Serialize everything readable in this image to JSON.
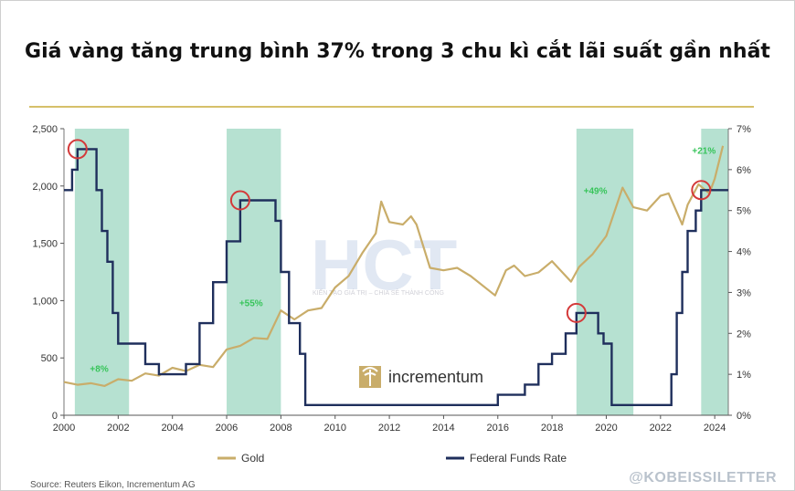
{
  "title": "Giá vàng tăng trung bình 37% trong 3 chu kì cắt lãi suất gần nhất",
  "source": "Source: Reuters Eikon, Incrementum AG",
  "handle": "@KOBEISSILETTER",
  "logo_text": "incrementum",
  "watermark": {
    "text": "HCT",
    "subtext": "KIẾN TẠO GIÁ TRỊ – CHIA SẺ THÀNH CÔNG"
  },
  "colors": {
    "gold": "#c9ad6a",
    "fed": "#1f2f5c",
    "band": "#9dd7c2",
    "pct": "#37c45a",
    "circle": "#d43a3a"
  },
  "chart_data": {
    "type": "line",
    "x_ticks": [
      "2000",
      "2002",
      "2004",
      "2006",
      "2008",
      "2010",
      "2012",
      "2014",
      "2016",
      "2018",
      "2020",
      "2022",
      "2024"
    ],
    "y_left_ticks": [
      "0",
      "500",
      "1,000",
      "1,500",
      "2,000",
      "2,500"
    ],
    "y_right_ticks": [
      "0%",
      "1%",
      "2%",
      "3%",
      "4%",
      "5%",
      "6%",
      "7%"
    ],
    "xlim": [
      2000,
      2024.5
    ],
    "ylim_left": [
      0,
      2500
    ],
    "ylim_right": [
      0,
      7
    ],
    "legend_position": "bottom",
    "series": [
      {
        "name": "Gold",
        "axis": "left",
        "points": [
          [
            2000,
            290
          ],
          [
            2000.5,
            280
          ],
          [
            2001,
            265
          ],
          [
            2001.5,
            270
          ],
          [
            2002,
            300
          ],
          [
            2002.5,
            315
          ],
          [
            2003,
            350
          ],
          [
            2003.5,
            360
          ],
          [
            2004,
            400
          ],
          [
            2004.5,
            400
          ],
          [
            2005,
            425
          ],
          [
            2005.5,
            435
          ],
          [
            2006,
            560
          ],
          [
            2006.5,
            620
          ],
          [
            2007,
            660
          ],
          [
            2007.5,
            680
          ],
          [
            2008,
            900
          ],
          [
            2008.5,
            850
          ],
          [
            2009,
            900
          ],
          [
            2009.5,
            950
          ],
          [
            2010,
            1100
          ],
          [
            2010.5,
            1230
          ],
          [
            2011,
            1400
          ],
          [
            2011.5,
            1600
          ],
          [
            2011.7,
            1850
          ],
          [
            2012,
            1700
          ],
          [
            2012.5,
            1650
          ],
          [
            2012.8,
            1750
          ],
          [
            2013,
            1650
          ],
          [
            2013.5,
            1300
          ],
          [
            2014,
            1250
          ],
          [
            2014.5,
            1300
          ],
          [
            2015,
            1200
          ],
          [
            2015.9,
            1060
          ],
          [
            2016.3,
            1250
          ],
          [
            2016.6,
            1320
          ],
          [
            2017,
            1200
          ],
          [
            2017.5,
            1260
          ],
          [
            2018,
            1330
          ],
          [
            2018.7,
            1180
          ],
          [
            2019,
            1280
          ],
          [
            2019.5,
            1420
          ],
          [
            2020,
            1550
          ],
          [
            2020.6,
            2000
          ],
          [
            2021,
            1800
          ],
          [
            2021.5,
            1800
          ],
          [
            2022,
            1900
          ],
          [
            2022.3,
            1950
          ],
          [
            2022.8,
            1650
          ],
          [
            2023,
            1850
          ],
          [
            2023.4,
            2000
          ],
          [
            2023.8,
            1950
          ],
          [
            2024,
            2050
          ],
          [
            2024.3,
            2350
          ]
        ]
      },
      {
        "name": "Federal Funds Rate",
        "axis": "right",
        "points": [
          [
            2000,
            5.5
          ],
          [
            2000.3,
            6.0
          ],
          [
            2000.5,
            6.5
          ],
          [
            2001,
            6.5
          ],
          [
            2001.2,
            5.5
          ],
          [
            2001.4,
            4.5
          ],
          [
            2001.6,
            3.75
          ],
          [
            2001.8,
            2.5
          ],
          [
            2002,
            1.75
          ],
          [
            2002.9,
            1.75
          ],
          [
            2003,
            1.25
          ],
          [
            2003.5,
            1.0
          ],
          [
            2004.4,
            1.0
          ],
          [
            2004.5,
            1.25
          ],
          [
            2005,
            2.25
          ],
          [
            2005.5,
            3.25
          ],
          [
            2006,
            4.25
          ],
          [
            2006.5,
            5.25
          ],
          [
            2007.6,
            5.25
          ],
          [
            2007.8,
            4.75
          ],
          [
            2008,
            3.5
          ],
          [
            2008.3,
            2.25
          ],
          [
            2008.7,
            1.5
          ],
          [
            2008.9,
            0.25
          ],
          [
            2015.9,
            0.25
          ],
          [
            2016,
            0.5
          ],
          [
            2016.9,
            0.5
          ],
          [
            2017,
            0.75
          ],
          [
            2017.5,
            1.25
          ],
          [
            2018,
            1.5
          ],
          [
            2018.5,
            2.0
          ],
          [
            2018.9,
            2.5
          ],
          [
            2019.5,
            2.5
          ],
          [
            2019.7,
            2.0
          ],
          [
            2019.9,
            1.75
          ],
          [
            2020.2,
            0.25
          ],
          [
            2022.2,
            0.25
          ],
          [
            2022.4,
            1.0
          ],
          [
            2022.6,
            2.5
          ],
          [
            2022.8,
            3.5
          ],
          [
            2023,
            4.5
          ],
          [
            2023.3,
            5.0
          ],
          [
            2023.5,
            5.5
          ],
          [
            2024.5,
            5.5
          ]
        ]
      }
    ],
    "shaded_periods": [
      [
        2000.4,
        2002.4
      ],
      [
        2006.0,
        2008.0
      ],
      [
        2018.9,
        2021.0
      ],
      [
        2023.5,
        2024.5
      ]
    ],
    "annotations": [
      {
        "text": "+8%",
        "x": 2001.3,
        "y_left": 380
      },
      {
        "text": "+55%",
        "x": 2006.9,
        "y_left": 950
      },
      {
        "text": "+49%",
        "x": 2019.6,
        "y_left": 1930
      },
      {
        "text": "+21%",
        "x": 2023.6,
        "y_left": 2280
      }
    ],
    "circles": [
      [
        2000.5,
        6.5
      ],
      [
        2006.5,
        5.25
      ],
      [
        2018.9,
        2.5
      ],
      [
        2023.5,
        5.5
      ]
    ]
  }
}
